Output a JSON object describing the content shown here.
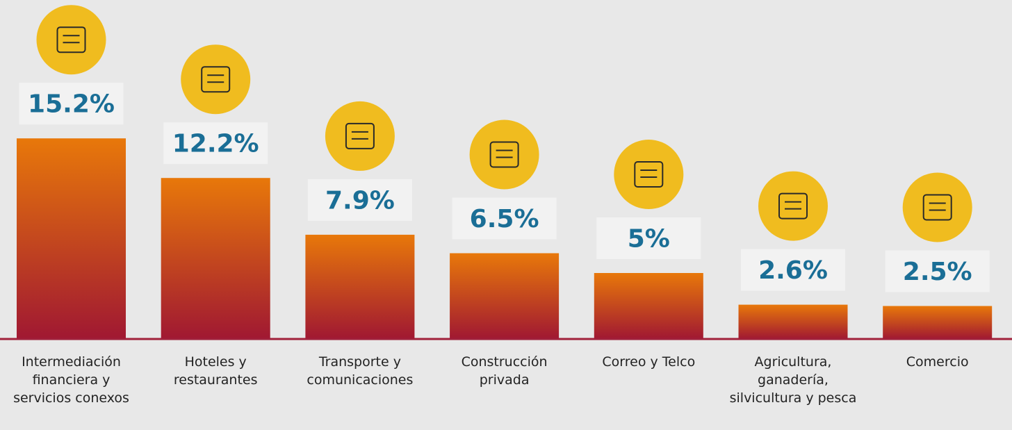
{
  "chart_data": {
    "type": "bar",
    "categories": [
      "Intermediación financiera y servicios conexos",
      "Hoteles y restaurantes",
      "Transporte y comunicaciones",
      "Construcción privada",
      "Correo y Telco",
      "Agricultura, ganadería, silvicultura y pesca",
      "Comercio"
    ],
    "values": [
      15.2,
      12.2,
      7.9,
      6.5,
      5,
      2.6,
      2.5
    ],
    "value_labels": [
      "15.2%",
      "12.2%",
      "7.9%",
      "6.5%",
      "5%",
      "2.6%",
      "2.5%"
    ],
    "color": "#e8780a"
  }
}
